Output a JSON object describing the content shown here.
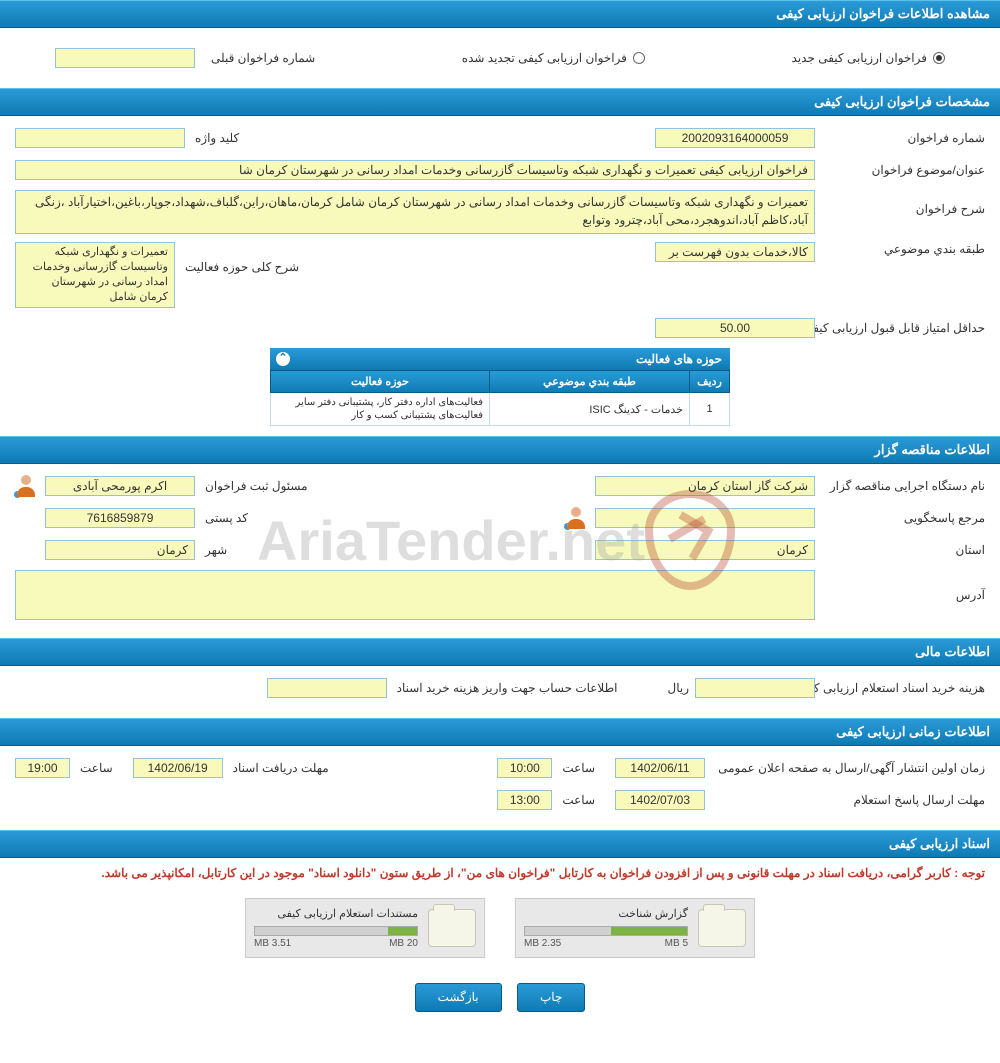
{
  "colors": {
    "header_grad_top": "#2a9bd8",
    "header_grad_bottom": "#0e7ab3",
    "yellow_bg": "#f8fabc",
    "yellow_border": "#95c2d8",
    "notice_color": "#c0392b",
    "progress_green": "#7cb342"
  },
  "s1": {
    "title": "مشاهده اطلاعات فراخوان ارزیابی کیفی"
  },
  "radio": {
    "opt1_label": "فراخوان ارزیابی کیفی جدید",
    "opt2_label": "فراخوان ارزیابی کیفی تجدید شده",
    "prev_label": "شماره فراخوان قبلی",
    "prev_value": ""
  },
  "s2": {
    "title": "مشخصات فراخوان ارزیابی کیفی",
    "num_label": "شماره فراخوان",
    "num_value": "2002093164000059",
    "keyword_label": "کلید واژه",
    "keyword_value": "",
    "subject_label": "عنوان/موضوع فراخوان",
    "subject_value": "فراخوان ارزیابی کیفی تعمیرات و نگهداری شبکه وتاسیسات گازرسانی وخدمات امداد رسانی در شهرستان کرمان شا",
    "desc_label": "شرح فراخوان",
    "desc_value": "تعمیرات و نگهداری شبکه وتاسیسات گازرسانی وخدمات امداد رسانی در شهرستان کرمان شامل کرمان،ماهان،راین،گلباف،شهداد،جوپار،باغین،اختیارآباد ،زنگی آباد،کاظم آباد،اندوهجرد،محی آباد،چترود وتوابع",
    "cat_label": "طبقه بندي موضوعي",
    "cat_value": "کالا،خدمات بدون فهرست بر",
    "activity_label": "شرح کلی حوزه فعالیت",
    "activity_value": "تعمیرات و نگهداری شبکه وتاسیسات گازرسانی وخدمات امداد رسانی در شهرستان کرمان شامل",
    "minscore_label": "حداقل امتیاز قابل قبول ارزیابی کیفی",
    "minscore_value": "50.00",
    "grid_title": "حوزه های فعالیت",
    "grid_col_row": "ردیف",
    "grid_col_cat": "طبقه بندي موضوعي",
    "grid_col_act": "حوزه فعاليت",
    "grid_r1_idx": "1",
    "grid_r1_cat": "خدمات - کدینگ ISIC",
    "grid_r1_act": "فعالیت‌های اداره دفتر کار، پشتیبانی دفتر سایر فعالیت‌های پشتیبانی کسب و کار"
  },
  "s3": {
    "title": "اطلاعات مناقصه گزار",
    "org_label": "نام دستگاه اجرایی مناقصه گزار",
    "org_value": "شرکت گاز استان کرمان",
    "reg_label": "مسئول ثبت فراخوان",
    "reg_value": "اکرم پورمحی آبادی",
    "resp_label": "مرجع پاسخگویی",
    "resp_value": "",
    "postal_label": "کد پستی",
    "postal_value": "7616859879",
    "province_label": "استان",
    "province_value": "کرمان",
    "city_label": "شهر",
    "city_value": "کرمان",
    "address_label": "آدرس",
    "address_value": ""
  },
  "s4": {
    "title": "اطلاعات مالی",
    "cost_label": "هزینه خرید اسناد استعلام ارزیابی کیفی",
    "cost_value": "",
    "rial": "ریال",
    "account_label": "اطلاعات حساب جهت واریز هزینه خرید اسناد"
  },
  "s5": {
    "title": "اطلاعات زمانی ارزیابی کیفی",
    "pub_label": "زمان اولین انتشار آگهی/ارسال به صفحه اعلان عمومی",
    "pub_date": "1402/06/11",
    "pub_time": "10:00",
    "deadline_label": "مهلت دریافت اسناد",
    "deadline_date": "1402/06/19",
    "deadline_time": "19:00",
    "resp_label": "مهلت ارسال پاسخ استعلام",
    "resp_date": "1402/07/03",
    "resp_time": "13:00",
    "time_word": "ساعت"
  },
  "s6": {
    "title": "اسناد ارزیابی کیفی",
    "notice": "توجه : کاربر گرامی، دریافت اسناد در مهلت قانونی و پس از افزودن فراخوان به کارتابل \"فراخوان های من\"، از طریق ستون \"دانلود اسناد\" موجود در این کارتابل، امکانپذیر می باشد.",
    "file1_title": "گزارش شناخت",
    "file1_used": "2.35 MB",
    "file1_total": "5 MB",
    "file1_pct": 47,
    "file2_title": "مستندات استعلام ارزیابی کیفی",
    "file2_used": "3.51 MB",
    "file2_total": "20 MB",
    "file2_pct": 18
  },
  "buttons": {
    "print": "چاپ",
    "back": "بازگشت"
  },
  "watermark": {
    "text": "AriaTender.net"
  }
}
